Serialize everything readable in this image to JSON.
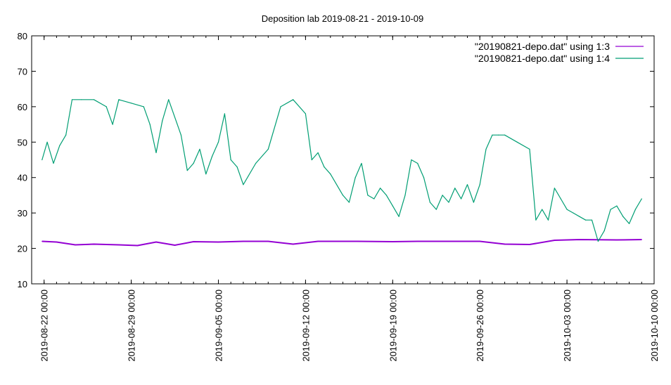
{
  "chart_data": {
    "type": "line",
    "title": "Deposition lab 2019-08-21 - 2019-10-09",
    "xlabel": "",
    "ylabel": "",
    "xlim": [
      "2019-08-21 00:00",
      "2019-10-10 00:00"
    ],
    "ylim": [
      10,
      80
    ],
    "y_ticks": [
      10,
      20,
      30,
      40,
      50,
      60,
      70,
      80
    ],
    "x_ticks": [
      "2019-08-22 00:00",
      "2019-08-29 00:00",
      "2019-09-05 00:00",
      "2019-09-12 00:00",
      "2019-09-19 00:00",
      "2019-09-26 00:00",
      "2019-10-03 00:00",
      "2019-10-10 00:00"
    ],
    "grid": false,
    "legend_position": "top-right",
    "series": [
      {
        "name": "\"20190821-depo.dat\" using 1:3",
        "color": "#9400d3",
        "x": [
          "2019-08-21 20:00",
          "2019-08-23 00:00",
          "2019-08-24 12:00",
          "2019-08-26 00:00",
          "2019-08-28 00:00",
          "2019-08-29 12:00",
          "2019-08-31 00:00",
          "2019-09-01 12:00",
          "2019-09-03 00:00",
          "2019-09-05 00:00",
          "2019-09-07 00:00",
          "2019-09-09 00:00",
          "2019-09-11 00:00",
          "2019-09-13 00:00",
          "2019-09-16 00:00",
          "2019-09-19 00:00",
          "2019-09-21 00:00",
          "2019-09-23 00:00",
          "2019-09-26 00:00",
          "2019-09-28 00:00",
          "2019-09-30 00:00",
          "2019-10-02 00:00",
          "2019-10-04 00:00",
          "2019-10-07 00:00",
          "2019-10-09 00:00"
        ],
        "y": [
          22.0,
          21.8,
          21.0,
          21.2,
          21.0,
          20.8,
          21.8,
          20.9,
          21.9,
          21.8,
          22.0,
          22.0,
          21.2,
          22.0,
          22.0,
          21.9,
          22.0,
          22.0,
          22.0,
          21.2,
          21.1,
          22.3,
          22.5,
          22.4,
          22.5
        ]
      },
      {
        "name": "\"20190821-depo.dat\" using 1:4",
        "color": "#009e73",
        "x": [
          "2019-08-21 20:00",
          "2019-08-22 06:00",
          "2019-08-22 18:00",
          "2019-08-23 06:00",
          "2019-08-23 18:00",
          "2019-08-24 06:00",
          "2019-08-25 00:00",
          "2019-08-26 00:00",
          "2019-08-27 00:00",
          "2019-08-27 12:00",
          "2019-08-28 00:00",
          "2019-08-29 00:00",
          "2019-08-30 00:00",
          "2019-08-30 12:00",
          "2019-08-31 00:00",
          "2019-08-31 12:00",
          "2019-09-01 00:00",
          "2019-09-02 00:00",
          "2019-09-02 12:00",
          "2019-09-03 00:00",
          "2019-09-03 12:00",
          "2019-09-04 00:00",
          "2019-09-04 12:00",
          "2019-09-05 00:00",
          "2019-09-05 12:00",
          "2019-09-06 00:00",
          "2019-09-06 12:00",
          "2019-09-07 00:00",
          "2019-09-08 00:00",
          "2019-09-09 00:00",
          "2019-09-10 00:00",
          "2019-09-11 00:00",
          "2019-09-12 00:00",
          "2019-09-12 12:00",
          "2019-09-13 00:00",
          "2019-09-13 12:00",
          "2019-09-14 00:00",
          "2019-09-15 00:00",
          "2019-09-15 12:00",
          "2019-09-16 00:00",
          "2019-09-16 12:00",
          "2019-09-17 00:00",
          "2019-09-17 12:00",
          "2019-09-18 00:00",
          "2019-09-18 12:00",
          "2019-09-19 00:00",
          "2019-09-19 12:00",
          "2019-09-20 00:00",
          "2019-09-20 12:00",
          "2019-09-21 00:00",
          "2019-09-21 12:00",
          "2019-09-22 00:00",
          "2019-09-22 12:00",
          "2019-09-23 00:00",
          "2019-09-23 12:00",
          "2019-09-24 00:00",
          "2019-09-24 12:00",
          "2019-09-25 00:00",
          "2019-09-25 12:00",
          "2019-09-26 00:00",
          "2019-09-26 12:00",
          "2019-09-27 00:00",
          "2019-09-27 12:00",
          "2019-09-28 00:00",
          "2019-09-29 00:00",
          "2019-09-30 00:00",
          "2019-09-30 12:00",
          "2019-10-01 00:00",
          "2019-10-01 12:00",
          "2019-10-02 00:00",
          "2019-10-02 12:00",
          "2019-10-03 00:00",
          "2019-10-03 12:00",
          "2019-10-04 00:00",
          "2019-10-04 12:00",
          "2019-10-05 00:00",
          "2019-10-05 12:00",
          "2019-10-06 00:00",
          "2019-10-06 12:00",
          "2019-10-07 00:00",
          "2019-10-07 12:00",
          "2019-10-08 00:00",
          "2019-10-08 12:00",
          "2019-10-09 00:00"
        ],
        "y": [
          45,
          50,
          44,
          49,
          52,
          62,
          62,
          62,
          60,
          55,
          62,
          61,
          60,
          55,
          47,
          56,
          62,
          52,
          42,
          44,
          48,
          41,
          46,
          50,
          58,
          45,
          43,
          38,
          44,
          48,
          60,
          62,
          58,
          45,
          47,
          43,
          41,
          35,
          33,
          40,
          44,
          35,
          34,
          37,
          35,
          32,
          29,
          35,
          45,
          44,
          40,
          33,
          31,
          35,
          33,
          37,
          34,
          38,
          33,
          38,
          48,
          52,
          52,
          52,
          50,
          48,
          28,
          31,
          28,
          37,
          34,
          31,
          30,
          29,
          28,
          28,
          22,
          25,
          31,
          32,
          29,
          27,
          31,
          34
        ]
      }
    ]
  }
}
